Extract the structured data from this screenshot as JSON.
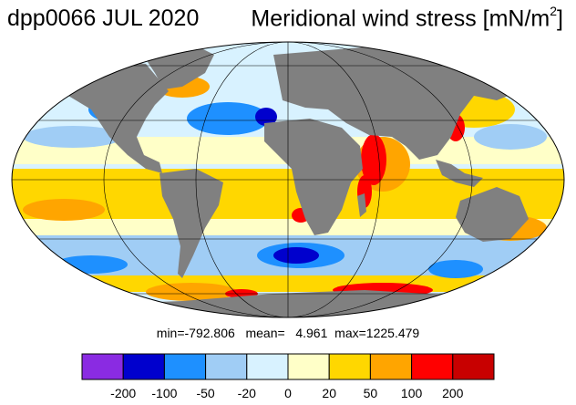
{
  "header": {
    "title_left": "dpp0066 JUL 2020",
    "title_right": "Meridional wind stress [mN/m",
    "title_right_sup": "2",
    "title_right_close": "]"
  },
  "stats": {
    "min_label": "min=",
    "min": "-792.806",
    "mean_label": "mean=",
    "mean": "4.961",
    "max_label": "max=",
    "max": "1225.479"
  },
  "colorbar": {
    "colors": [
      "#8a2be2",
      "#0000cd",
      "#1e90ff",
      "#a0cdf5",
      "#d8f2ff",
      "#ffffc8",
      "#ffd700",
      "#ffa500",
      "#ff0000",
      "#c80000"
    ],
    "tick_labels": [
      "-200",
      "-100",
      "-50",
      "-20",
      "0",
      "20",
      "50",
      "100",
      "200"
    ]
  },
  "map": {
    "projection": "mollweide",
    "land_color": "#808080"
  }
}
